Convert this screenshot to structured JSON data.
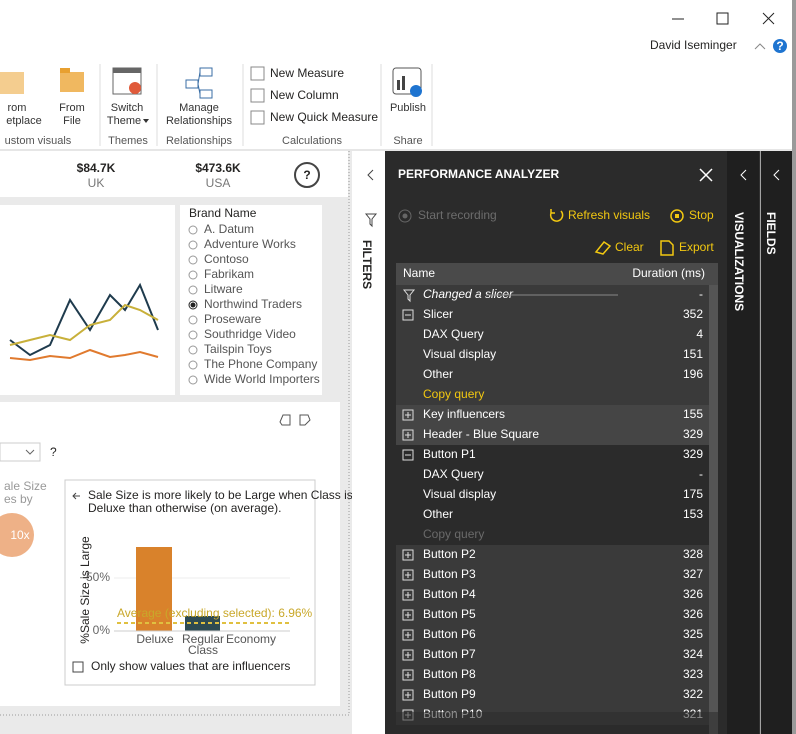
{
  "window": {
    "user": "David Iseminger",
    "help": "?"
  },
  "ribbon": {
    "marketplace": [
      "rom",
      "etplace"
    ],
    "from_file": [
      "From",
      "File"
    ],
    "custom_visuals_group": "ustom visuals",
    "switch_theme": [
      "Switch",
      "Theme"
    ],
    "themes_group": "Themes",
    "manage_relationships": [
      "Manage",
      "Relationships"
    ],
    "relationships_group": "Relationships",
    "new_measure": "New Measure",
    "new_column": "New Column",
    "new_quick_measure": "New Quick Measure",
    "calculations_group": "Calculations",
    "publish": "Publish",
    "share_group": "Share"
  },
  "report": {
    "cards": [
      {
        "value": "$84.7K",
        "label": "UK"
      },
      {
        "value": "$473.6K",
        "label": "USA"
      }
    ],
    "help": "?",
    "slicer": {
      "title": "Brand Name",
      "items": [
        "A. Datum",
        "Adventure Works",
        "Contoso",
        "Fabrikam",
        "Litware",
        "Northwind Traders",
        "Proseware",
        "Southridge Video",
        "Tailspin Toys",
        "The Phone Company",
        "Wide World Importers"
      ],
      "selected": 5
    },
    "key_influencers": {
      "help": "?",
      "side_text": [
        "ale Size",
        "es by"
      ],
      "bubble": "10x",
      "explanation": [
        "Sale Size is more likely to be Large when Class is",
        "Deluxe than otherwise (on average)."
      ],
      "y_label": "%Sale Size is Large",
      "y_ticks": [
        "50%",
        "0%"
      ],
      "average": "Average (excluding selected): 6.96%",
      "categories": [
        "Deluxe",
        "Regular",
        "Economy"
      ],
      "x_label": "Class",
      "checkbox": "Only show values that are influencers"
    }
  },
  "filters": {
    "title": "FILTERS"
  },
  "performance_analyzer": {
    "title": "PERFORMANCE ANALYZER",
    "start_recording": "Start recording",
    "refresh_visuals": "Refresh visuals",
    "stop": "Stop",
    "clear": "Clear",
    "export": "Export",
    "columns": [
      "Name",
      "Duration (ms)"
    ],
    "event": {
      "name": "Changed a slicer",
      "duration": "-"
    },
    "visuals": [
      {
        "name": "Slicer",
        "duration": 352,
        "expanded": true,
        "children": [
          {
            "name": "DAX Query",
            "duration": 4
          },
          {
            "name": "Visual display",
            "duration": 151
          },
          {
            "name": "Other",
            "duration": 196
          }
        ],
        "copy_query": {
          "label": "Copy query",
          "enabled": true
        }
      },
      {
        "name": "Key influencers",
        "duration": 155,
        "expanded": false
      },
      {
        "name": "Header - Blue Square",
        "duration": 329,
        "expanded": false
      },
      {
        "name": "Button P1",
        "duration": 329,
        "expanded": true,
        "children": [
          {
            "name": "DAX Query",
            "duration": "-"
          },
          {
            "name": "Visual display",
            "duration": 175
          },
          {
            "name": "Other",
            "duration": 153
          }
        ],
        "copy_query": {
          "label": "Copy query",
          "enabled": false
        }
      },
      {
        "name": "Button P2",
        "duration": 328,
        "expanded": false
      },
      {
        "name": "Button P3",
        "duration": 327,
        "expanded": false
      },
      {
        "name": "Button P4",
        "duration": 326,
        "expanded": false
      },
      {
        "name": "Button P5",
        "duration": 326,
        "expanded": false
      },
      {
        "name": "Button P6",
        "duration": 325,
        "expanded": false
      },
      {
        "name": "Button P7",
        "duration": 324,
        "expanded": false
      },
      {
        "name": "Button P8",
        "duration": 323,
        "expanded": false
      },
      {
        "name": "Button P9",
        "duration": 322,
        "expanded": false
      },
      {
        "name": "Button P10",
        "duration": 321,
        "expanded": false
      }
    ]
  },
  "visualizations": {
    "title": "VISUALIZATIONS"
  },
  "fields": {
    "title": "FIELDS"
  }
}
